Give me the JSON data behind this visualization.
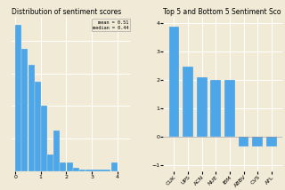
{
  "hist_title": "Distribution of sentiment scores",
  "bar_title": "Top 5 and Bottom 5 Sentiment Sco",
  "background_color": "#f0ead6",
  "bar_color": "#4da6e8",
  "hist_bins": [
    0,
    0.25,
    0.5,
    0.75,
    1.0,
    1.25,
    1.5,
    1.75,
    2.0,
    2.25,
    2.5,
    2.75,
    3.75,
    4.0
  ],
  "hist_counts": [
    90,
    75,
    65,
    55,
    40,
    10,
    25,
    5,
    5,
    2,
    1,
    1,
    5
  ],
  "hist_xlim": [
    -0.15,
    4.5
  ],
  "hist_xticks": [
    0,
    1,
    2,
    3,
    4
  ],
  "mean_val": "0.51",
  "median_val": "0.44",
  "bar_labels": [
    "CUK",
    "UPS",
    "ACN",
    "NUE",
    "IBM",
    "ABBV",
    "CVS",
    "AFL"
  ],
  "bar_values": [
    3.85,
    2.45,
    2.1,
    2.0,
    2.0,
    -0.35,
    -0.35,
    -0.35
  ],
  "bar_ylim": [
    -1.2,
    4.2
  ],
  "bar_yticks": [
    -1,
    0,
    1,
    2,
    3,
    4
  ]
}
